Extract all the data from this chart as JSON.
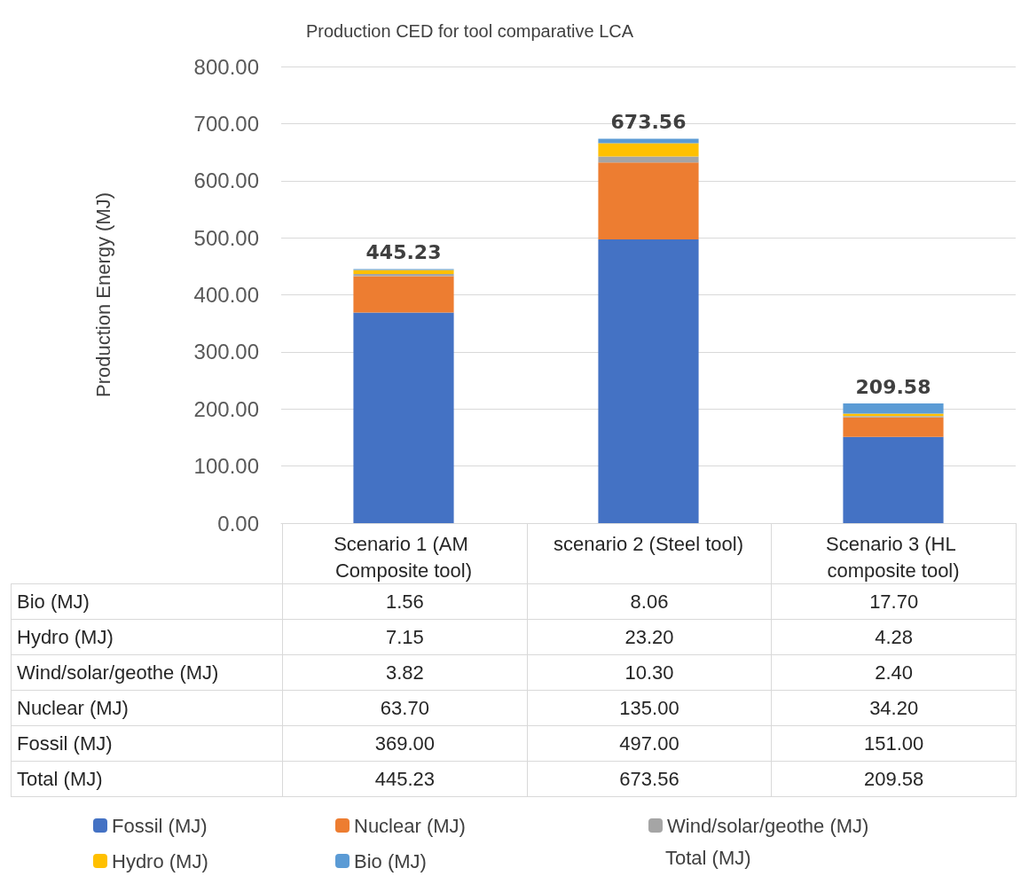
{
  "chart_data": {
    "type": "bar",
    "stacked": true,
    "title": "Production CED for tool comparative LCA",
    "ylabel": "Production Energy (MJ)",
    "categories": [
      "Scenario 1 (AM Composite tool)",
      "scenario 2 (Steel tool)",
      "Scenario 3 (HL composite tool)"
    ],
    "series": [
      {
        "name": "Fossil (MJ)",
        "color": "#4472c4",
        "values": [
          369.0,
          497.0,
          151.0
        ],
        "value_labels": [
          "369.00",
          "497.00",
          "151.00"
        ]
      },
      {
        "name": "Nuclear (MJ)",
        "color": "#ed7d31",
        "values": [
          63.7,
          135.0,
          34.2
        ],
        "value_labels": [
          "63.70",
          "135.00",
          "34.20"
        ]
      },
      {
        "name": "Wind/solar/geothe (MJ)",
        "color": "#a5a5a5",
        "values": [
          3.82,
          10.3,
          2.4
        ],
        "value_labels": [
          "3.82",
          "10.30",
          "2.40"
        ]
      },
      {
        "name": "Hydro (MJ)",
        "color": "#ffc000",
        "values": [
          7.15,
          23.2,
          4.28
        ],
        "value_labels": [
          "7.15",
          "23.20",
          "4.28"
        ]
      },
      {
        "name": "Bio (MJ)",
        "color": "#5b9bd5",
        "values": [
          1.56,
          8.06,
          17.7
        ],
        "value_labels": [
          "1.56",
          "8.06",
          "17.70"
        ]
      }
    ],
    "totals": [
      "445.23",
      "673.56",
      "209.58"
    ],
    "annotations": [
      "Total (MJ)"
    ],
    "ylim": [
      0,
      800
    ],
    "yticks": [
      {
        "value": 0,
        "label": "0.00"
      },
      {
        "value": 100,
        "label": "100.00"
      },
      {
        "value": 200,
        "label": "200.00"
      },
      {
        "value": 300,
        "label": "300.00"
      },
      {
        "value": 400,
        "label": "400.00"
      },
      {
        "value": 500,
        "label": "500.00"
      },
      {
        "value": 600,
        "label": "600.00"
      },
      {
        "value": 700,
        "label": "700.00"
      },
      {
        "value": 800,
        "label": "800.00"
      }
    ],
    "grid": "y",
    "legend": "bottom"
  }
}
